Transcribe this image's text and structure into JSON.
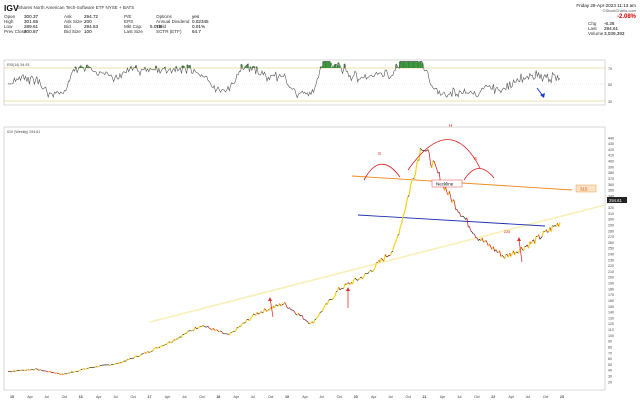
{
  "header": {
    "symbol": "IGV",
    "name": "iShares North American Tech-Software ETF NYSE + BATS",
    "date": "Friday 28-Apr-2023 11:13 am",
    "logo": "©StockCharts.com",
    "change_pct": "-2.08%",
    "left_stats": [
      {
        "label": "Open",
        "value": "300.37"
      },
      {
        "label": "High",
        "value": "301.65"
      },
      {
        "label": "Low",
        "value": "289.61"
      },
      {
        "label": "Prev Close",
        "value": "300.87"
      }
    ],
    "mid_stats": [
      {
        "label": "Ask",
        "value": "294.72"
      },
      {
        "label": "Ask Size",
        "value": "200"
      },
      {
        "label": "Bid",
        "value": "294.53"
      },
      {
        "label": "Bid Size",
        "value": "100"
      }
    ],
    "mid2_stats": [
      {
        "label": "P/E",
        "value": ""
      },
      {
        "label": "EPS",
        "value": ""
      },
      {
        "label": "Mkt Cap.",
        "value": "5.01B"
      },
      {
        "label": "Last Size",
        "value": ""
      }
    ],
    "right_stats": [
      {
        "label": "Options",
        "value": "yes"
      },
      {
        "label": "Annual Dividend",
        "value": "0.02345"
      },
      {
        "label": "Yield",
        "value": "0.01%"
      },
      {
        "label": "SCTR (ETF)",
        "value": "64.7"
      }
    ],
    "far_right_stats": [
      {
        "label": "Chg",
        "value": "-6.26"
      },
      {
        "label": "Last",
        "value": "294.61"
      },
      {
        "label": "Volume",
        "value": "3,039,393"
      }
    ]
  },
  "rsi_panel": {
    "label": "RSI(14) 54.93",
    "ticks": [
      "70",
      "50",
      "30"
    ],
    "line_color": "#555555",
    "overbought_fill": "#2e8b2e",
    "oversold_fill": "#cc3333",
    "arrow_color": "#1f3fcf"
  },
  "price_panel": {
    "label": "IGV (Weekly) 294.61",
    "last_price_tag": "294.61",
    "level_tag": "315",
    "annotations": {
      "neckline": "Neckline",
      "left_shoulder": "S",
      "head": "H",
      "right_shoulder": "S",
      "low_label": "225"
    },
    "y_ticks": [
      "440",
      "430",
      "420",
      "410",
      "400",
      "390",
      "380",
      "370",
      "360",
      "350",
      "340",
      "330",
      "320",
      "310",
      "300",
      "290",
      "280",
      "270",
      "260",
      "250",
      "240",
      "230",
      "220",
      "210",
      "200",
      "190",
      "180",
      "170",
      "160",
      "150",
      "140",
      "130",
      "120",
      "110",
      "100",
      "90",
      "80",
      "70",
      "60",
      "50",
      "40",
      "30",
      "20"
    ],
    "x_ticks": [
      "15",
      "Apr",
      "Jul",
      "Oct",
      "16",
      "Apr",
      "Jul",
      "Oct",
      "17",
      "Apr",
      "Jul",
      "Oct",
      "18",
      "Apr",
      "Jul",
      "Oct",
      "19",
      "Apr",
      "Jul",
      "Oct",
      "20",
      "Apr",
      "Jul",
      "Oct",
      "21",
      "Apr",
      "Jul",
      "Oct",
      "22",
      "Apr",
      "Jul",
      "Oct",
      "23"
    ],
    "colors": {
      "price_up": "#f2d21a",
      "price_down": "#d01010",
      "price_flat": "#222222",
      "neckline": "#f08a1c",
      "support": "#1f2fb0",
      "trend": "#f7f0b8",
      "arrow": "#e03030"
    }
  },
  "chart_data": {
    "type": "line",
    "title": "IGV (Weekly) 294.61",
    "xlabel": "",
    "ylabel": "",
    "ylim": [
      20,
      440
    ],
    "x": [
      "2015-01",
      "2015-07",
      "2016-01",
      "2016-07",
      "2017-01",
      "2017-07",
      "2018-01",
      "2018-07",
      "2018-12",
      "2019-07",
      "2020-01",
      "2020-03",
      "2020-07",
      "2021-01",
      "2021-07",
      "2021-11",
      "2022-03",
      "2022-07",
      "2022-10",
      "2023-01",
      "2023-04"
    ],
    "series": [
      {
        "values": [
          38,
          42,
          33,
          45,
          52,
          70,
          92,
          118,
          100,
          138,
          155,
          120,
          180,
          205,
          250,
          430,
          340,
          270,
          235,
          260,
          294.61
        ]
      }
    ],
    "annotations": [
      {
        "text": "Neckline",
        "y": 310
      },
      {
        "text": "315",
        "y": 315
      },
      {
        "text": "225",
        "y": 225
      }
    ]
  }
}
